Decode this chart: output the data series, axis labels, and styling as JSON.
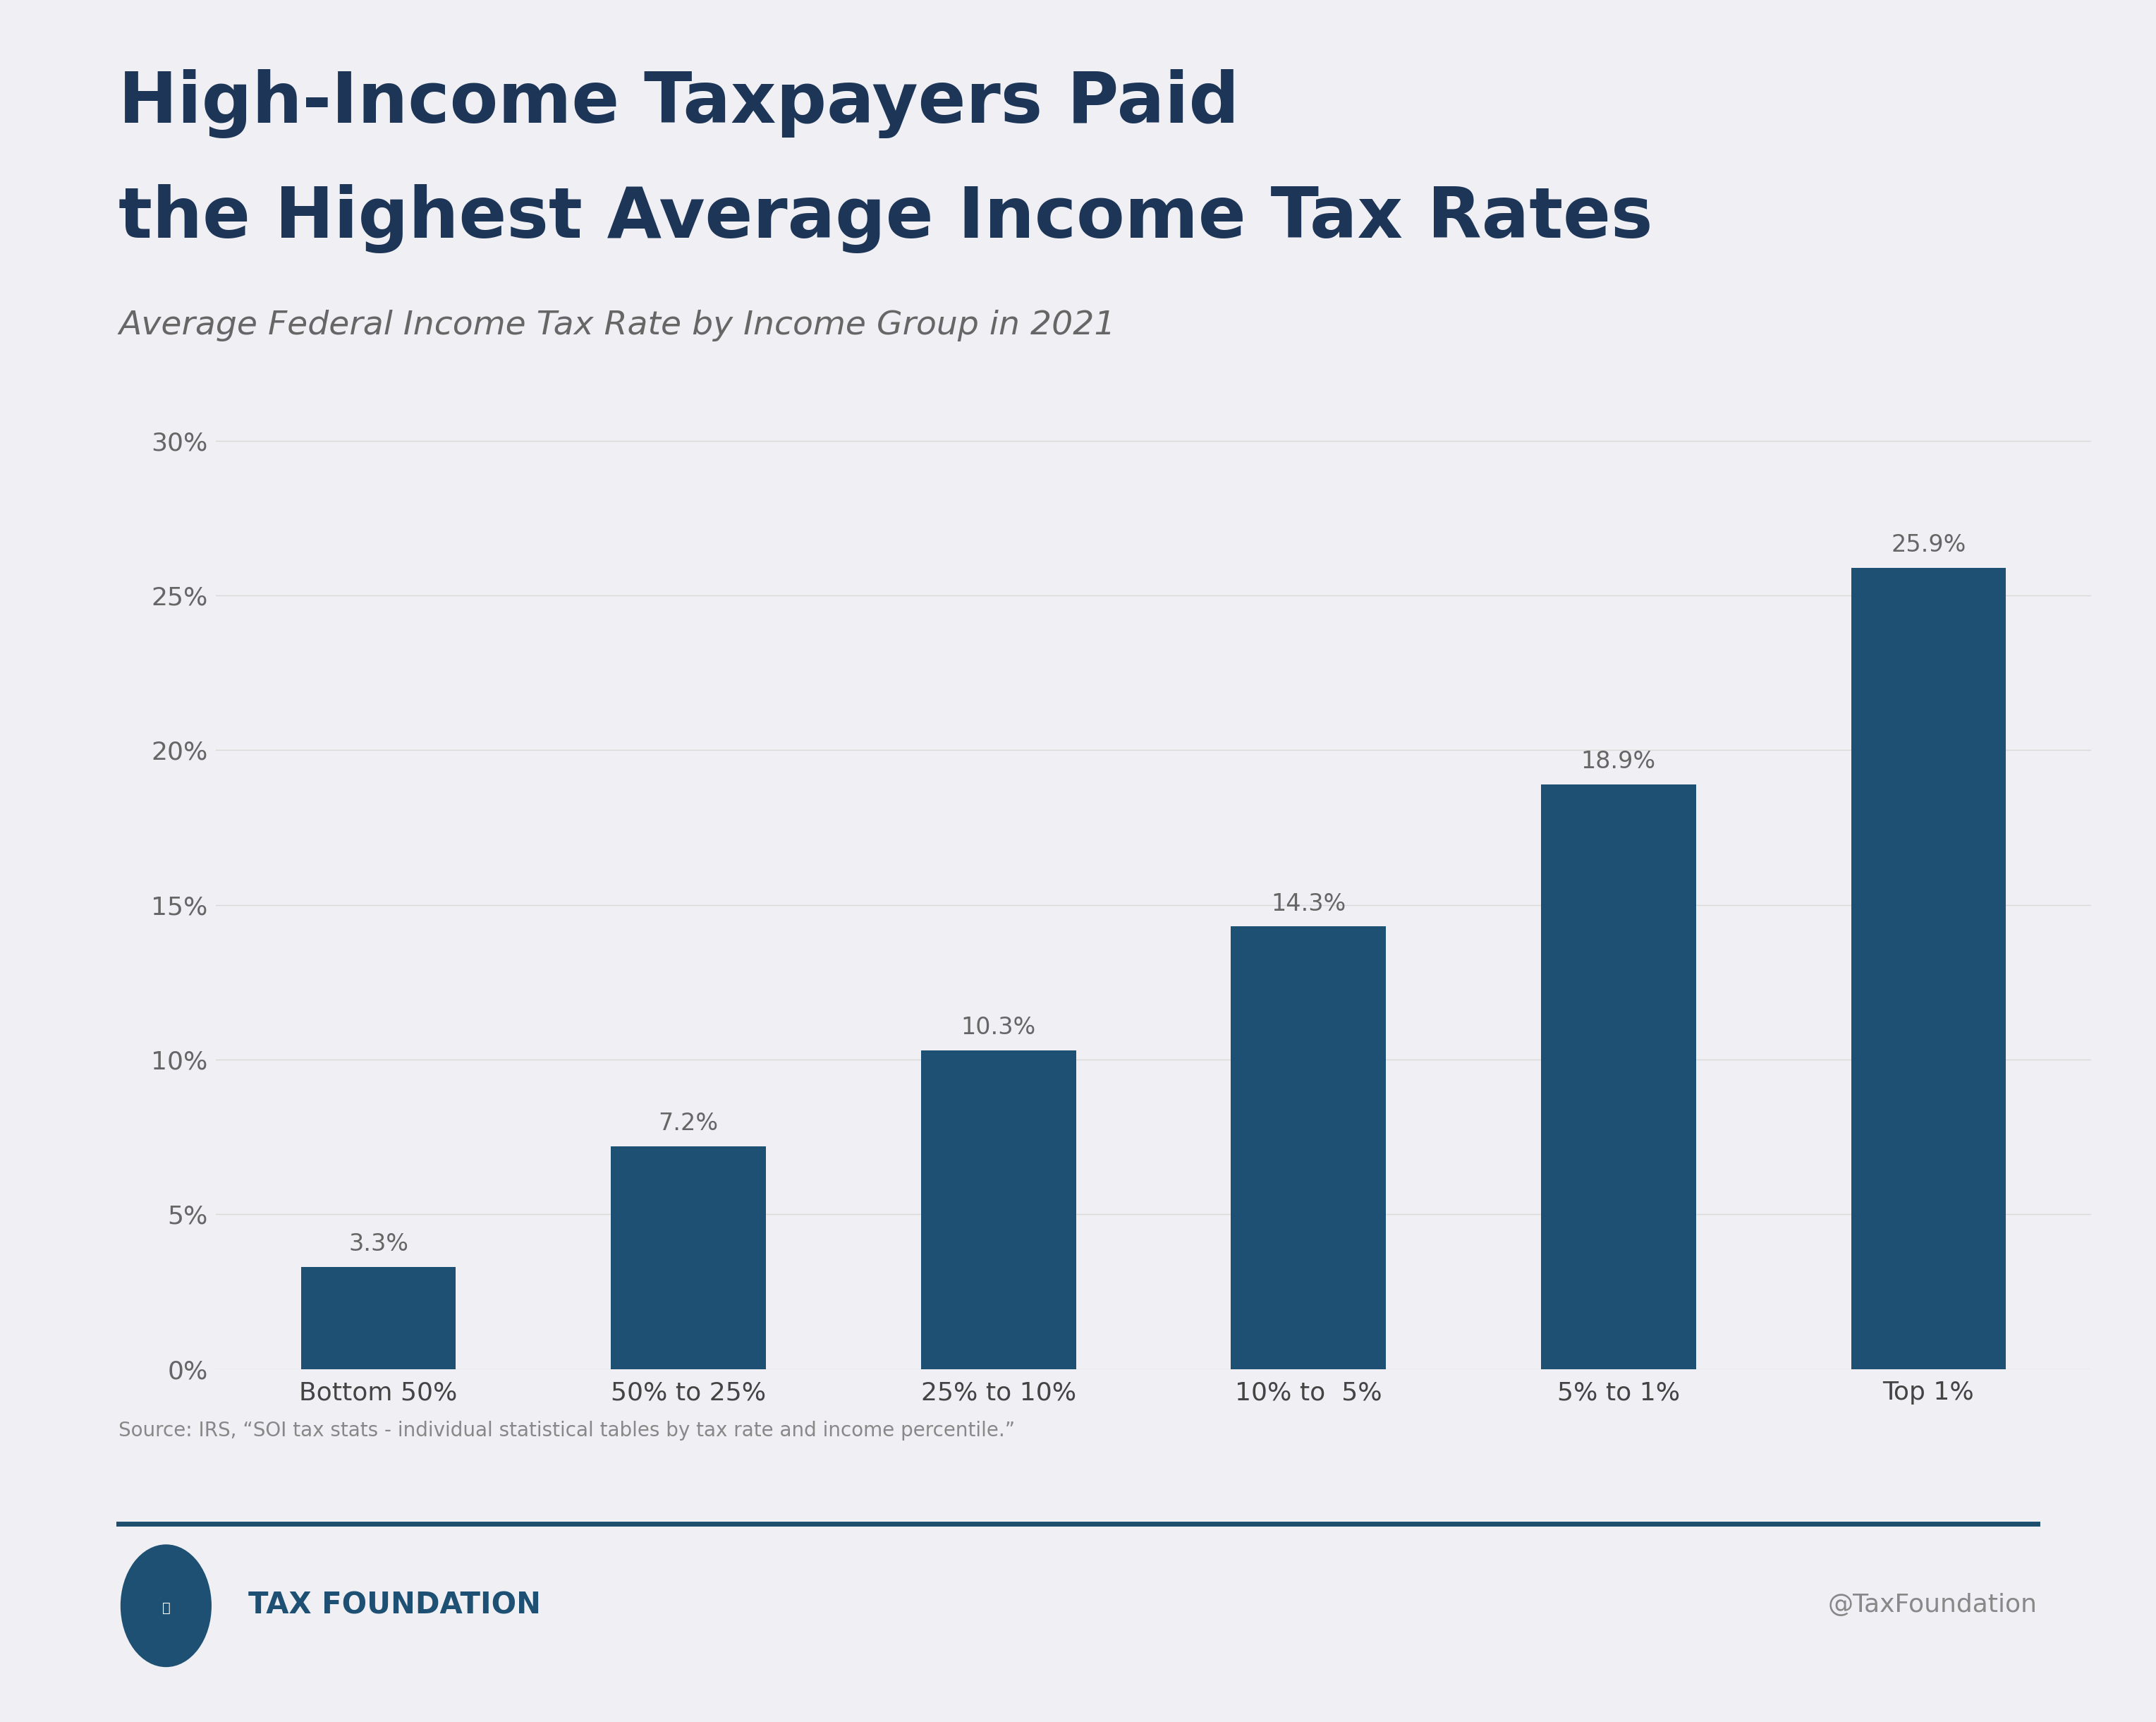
{
  "title_line1": "High-Income Taxpayers Paid",
  "title_line2": "the Highest Average Income Tax Rates",
  "subtitle": "Average Federal Income Tax Rate by Income Group in 2021",
  "categories": [
    "Bottom 50%",
    "50% to 25%",
    "25% to 10%",
    "10% to  5%",
    "5% to 1%",
    "Top 1%"
  ],
  "values": [
    3.3,
    7.2,
    10.3,
    14.3,
    18.9,
    25.9
  ],
  "bar_color": "#1d5072",
  "background_color": "#f0f0f4",
  "title_color": "#1d3557",
  "subtitle_color": "#666666",
  "ytick_labels": [
    "0%",
    "5%",
    "10%",
    "15%",
    "20%",
    "25%",
    "30%"
  ],
  "ytick_values": [
    0,
    5,
    10,
    15,
    20,
    25,
    30
  ],
  "ylim": [
    0,
    32
  ],
  "source_text": "Source: IRS, “SOI tax stats - individual statistical tables by tax rate and income percentile.”",
  "footer_right": "@TaxFoundation",
  "footer_color": "#888888",
  "label_color": "#666666",
  "value_label_color": "#666666",
  "grid_color": "#d8d8d8",
  "separator_color": "#1d4e6e",
  "xtick_color": "#444444"
}
